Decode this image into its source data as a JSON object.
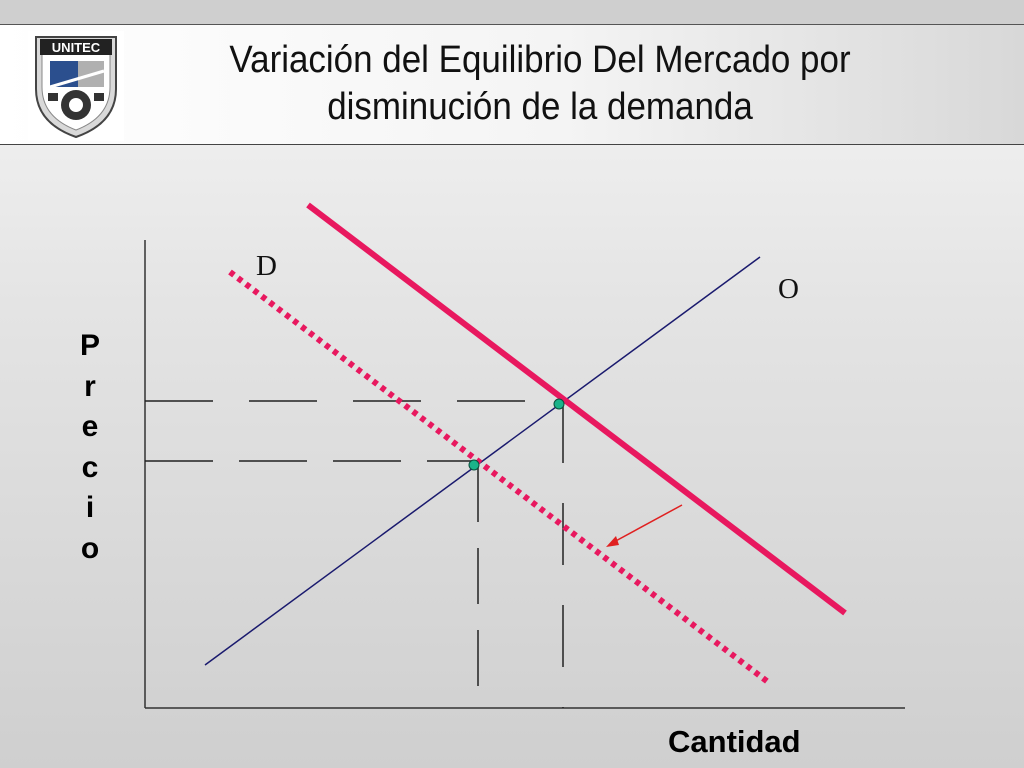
{
  "header": {
    "title_line1": "Variación del Equilibrio Del Mercado por",
    "title_line2": "disminución de la demanda",
    "logo_text": "UNITEC"
  },
  "axes": {
    "ylabel_letters": [
      "P",
      "r",
      "e",
      "c",
      "i",
      "o"
    ],
    "xlabel": "Cantidad"
  },
  "curves": {
    "demand_label": "D",
    "supply_label": "O"
  },
  "colors": {
    "demand": "#e8185f",
    "supply": "#1a1a6e",
    "arrow": "#e02020",
    "equilibrium_point": "#1bb28a"
  },
  "icons": {
    "logo": "unitec-shield-logo",
    "shift_arrow": "arrow-down-left-icon"
  }
}
